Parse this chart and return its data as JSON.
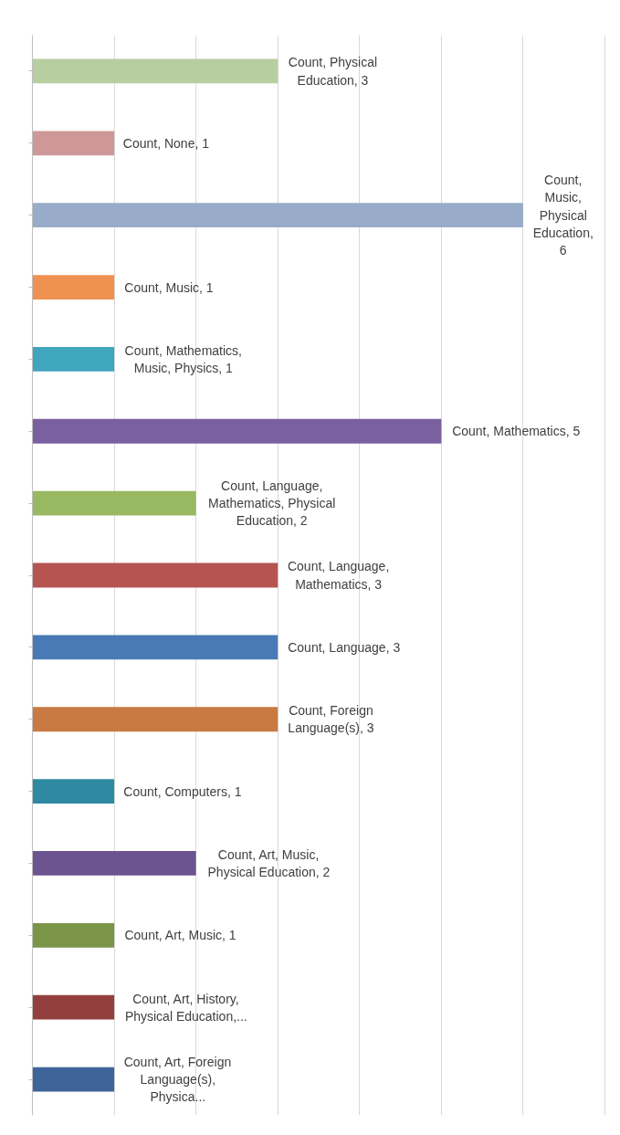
{
  "chart_data": {
    "type": "bar",
    "orientation": "horizontal",
    "categories": [
      null,
      null,
      null,
      null,
      null,
      null,
      null,
      null,
      null,
      null,
      null,
      null,
      null,
      null,
      null
    ],
    "values": [
      3,
      1,
      6,
      1,
      1,
      5,
      2,
      3,
      3,
      3,
      1,
      2,
      1,
      1,
      1
    ],
    "colors": [
      "#b7cea0",
      "#cf9898",
      "#98acca",
      "#ef9150",
      "#40a6be",
      "#7b60a0",
      "#98b862",
      "#b65452",
      "#4a7ab5",
      "#c97a42",
      "#2f8aa1",
      "#6c5490",
      "#7a9548",
      "#933f3d",
      "#3f649a"
    ],
    "value_labels": [
      "Count, Physical Education, 3",
      "Count, None, 1",
      "Count, Music, Physical Education, 6",
      "Count, Music, 1",
      "Count, Mathematics, Music, Physics, 1",
      "Count, Mathematics, 5",
      "Count, Language, Mathematics, Physical Education, 2",
      "Count, Language, Mathematics, 3",
      "Count, Language, 3",
      "Count, Foreign Language(s), 3",
      "Count, Computers, 1",
      "Count, Art, Music, Physical Education, 2",
      "Count, Art, Music, 1",
      "Count, Art, History, Physical Education,...",
      "Count, Art, Foreign Language(s), Physica..."
    ],
    "xlim": [
      0,
      7
    ],
    "xticks": [
      {
        "value": 0,
        "label": null
      },
      {
        "value": 1,
        "label": null
      },
      {
        "value": 2,
        "label": null
      },
      {
        "value": 3,
        "label": null
      },
      {
        "value": 4,
        "label": null
      },
      {
        "value": 5,
        "label": null
      },
      {
        "value": 6,
        "label": null
      },
      {
        "value": 7,
        "label": null
      }
    ],
    "grid": "x"
  }
}
